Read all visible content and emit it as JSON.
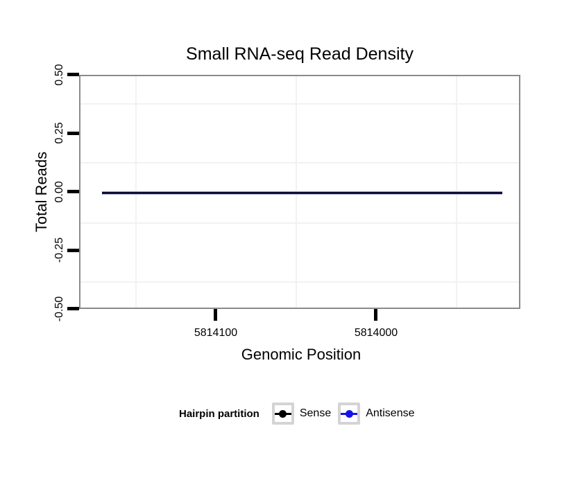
{
  "title": "Small RNA-seq Read Density",
  "axes": {
    "x": {
      "label": "Genomic Position",
      "ticks": [
        "5814100",
        "5814000"
      ]
    },
    "y": {
      "label": "Total Reads",
      "ticks": [
        "0.50",
        "0.25",
        "0.00",
        "-0.25",
        "-0.50"
      ]
    }
  },
  "legend": {
    "title": "Hairpin partition",
    "items": [
      {
        "label": "Sense",
        "color": "#000000"
      },
      {
        "label": "Antisense",
        "color": "#1414e8"
      }
    ]
  },
  "colors": {
    "panel_border": "#8a8a8a",
    "grid_minor": "#f2f2f2",
    "overlap_line_core": "#0c0c33",
    "overlap_line_halo": "#b0b0d0",
    "tick": "#000000"
  },
  "chart_data": {
    "type": "line",
    "title": "Small RNA-seq Read Density",
    "xlabel": "Genomic Position",
    "ylabel": "Total Reads",
    "x_axis": {
      "reversed": true,
      "range": [
        5814185,
        5813910
      ],
      "ticks": [
        5814100,
        5814000
      ],
      "minor_gridlines": [
        5814150,
        5814050,
        5813950
      ]
    },
    "y_axis": {
      "range": [
        -0.5,
        0.5
      ],
      "ticks": [
        0.5,
        0.25,
        0.0,
        -0.25,
        -0.5
      ],
      "minor_gridlines": [
        0.375,
        0.125,
        -0.125,
        -0.375
      ]
    },
    "series": [
      {
        "name": "Sense",
        "color": "#000000",
        "x": [
          5814171,
          5813922
        ],
        "y": [
          0,
          0
        ]
      },
      {
        "name": "Antisense",
        "color": "#1414e8",
        "x": [
          5814171,
          5813922
        ],
        "y": [
          0,
          0
        ]
      }
    ],
    "legend_title": "Hairpin partition",
    "legend_position": "bottom",
    "grid": "minor-only",
    "note": "Both series are constant at 0 total reads across the region, so the black Sense line and blue Antisense line overlap as one dark navy horizontal line at y = 0."
  }
}
